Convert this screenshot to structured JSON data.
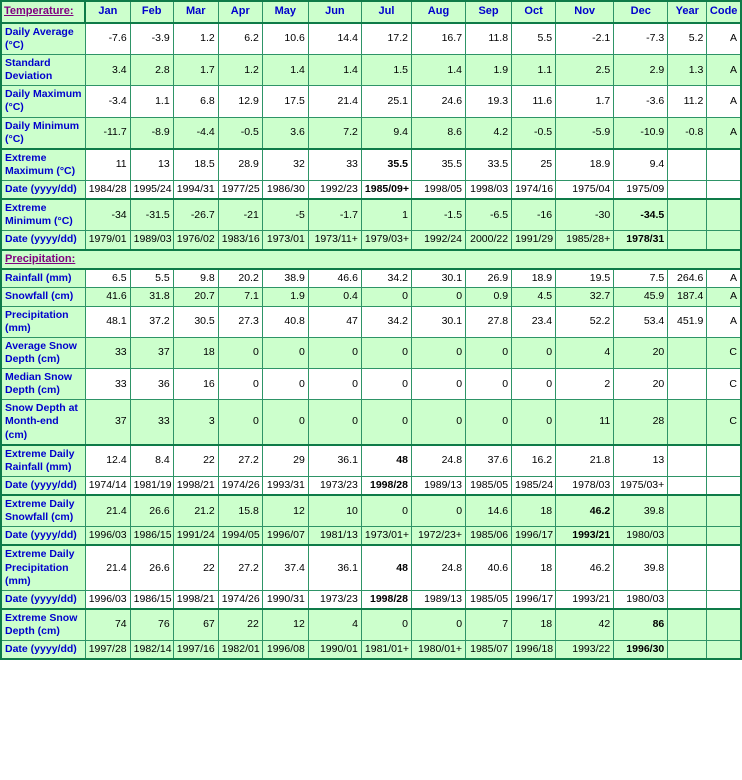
{
  "colors": {
    "cell_green": "#CCFFCC",
    "border_thin": "#2E9467",
    "border_thick": "#0E7B48",
    "label_blue": "#0000CC",
    "section_purple": "#800080",
    "text_black": "#000000"
  },
  "table": {
    "header": {
      "section_label": "Temperature:",
      "months": [
        "Jan",
        "Feb",
        "Mar",
        "Apr",
        "May",
        "Jun",
        "Jul",
        "Aug",
        "Sep",
        "Oct",
        "Nov",
        "Dec"
      ],
      "year_label": "Year",
      "code_label": "Code"
    },
    "rows": [
      {
        "kind": "data",
        "label": "Daily Average (°C)",
        "values": [
          "-7.6",
          "-3.9",
          "1.2",
          "6.2",
          "10.6",
          "14.4",
          "17.2",
          "16.7",
          "11.8",
          "5.5",
          "-2.1",
          "-7.3"
        ],
        "year": "5.2",
        "code": "A",
        "shade": false,
        "bold": [],
        "thick_top": false
      },
      {
        "kind": "data",
        "label": "Standard Deviation",
        "values": [
          "3.4",
          "2.8",
          "1.7",
          "1.2",
          "1.4",
          "1.4",
          "1.5",
          "1.4",
          "1.9",
          "1.1",
          "2.5",
          "2.9"
        ],
        "year": "1.3",
        "code": "A",
        "shade": true,
        "bold": [],
        "thick_top": false
      },
      {
        "kind": "data",
        "label": "Daily Maximum (°C)",
        "values": [
          "-3.4",
          "1.1",
          "6.8",
          "12.9",
          "17.5",
          "21.4",
          "25.1",
          "24.6",
          "19.3",
          "11.6",
          "1.7",
          "-3.6"
        ],
        "year": "11.2",
        "code": "A",
        "shade": false,
        "bold": [],
        "thick_top": false
      },
      {
        "kind": "data",
        "label": "Daily Minimum (°C)",
        "values": [
          "-11.7",
          "-8.9",
          "-4.4",
          "-0.5",
          "3.6",
          "7.2",
          "9.4",
          "8.6",
          "4.2",
          "-0.5",
          "-5.9",
          "-10.9"
        ],
        "year": "-0.8",
        "code": "A",
        "shade": true,
        "bold": [],
        "thick_top": false
      },
      {
        "kind": "data",
        "label": "Extreme Maximum (°C)",
        "values": [
          "11",
          "13",
          "18.5",
          "28.9",
          "32",
          "33",
          "35.5",
          "35.5",
          "33.5",
          "25",
          "18.9",
          "9.4"
        ],
        "year": "",
        "code": "",
        "shade": false,
        "bold": [
          6
        ],
        "thick_top": true
      },
      {
        "kind": "data",
        "label": "Date (yyyy/dd)",
        "values": [
          "1984/28",
          "1995/24",
          "1994/31",
          "1977/25",
          "1986/30",
          "1992/23",
          "1985/09+",
          "1998/05",
          "1998/03",
          "1974/16",
          "1975/04",
          "1975/09"
        ],
        "year": "",
        "code": "",
        "shade": false,
        "bold": [
          6
        ],
        "thick_top": false
      },
      {
        "kind": "data",
        "label": "Extreme Minimum (°C)",
        "values": [
          "-34",
          "-31.5",
          "-26.7",
          "-21",
          "-5",
          "-1.7",
          "1",
          "-1.5",
          "-6.5",
          "-16",
          "-30",
          "-34.5"
        ],
        "year": "",
        "code": "",
        "shade": true,
        "bold": [
          11
        ],
        "thick_top": true
      },
      {
        "kind": "data",
        "label": "Date (yyyy/dd)",
        "values": [
          "1979/01",
          "1989/03",
          "1976/02",
          "1983/16",
          "1973/01",
          "1973/11+",
          "1979/03+",
          "1992/24",
          "2000/22",
          "1991/29",
          "1985/28+",
          "1978/31"
        ],
        "year": "",
        "code": "",
        "shade": true,
        "bold": [
          11
        ],
        "thick_top": false
      },
      {
        "kind": "section",
        "label": "Precipitation:"
      },
      {
        "kind": "data",
        "label": "Rainfall (mm)",
        "values": [
          "6.5",
          "5.5",
          "9.8",
          "20.2",
          "38.9",
          "46.6",
          "34.2",
          "30.1",
          "26.9",
          "18.9",
          "19.5",
          "7.5"
        ],
        "year": "264.6",
        "code": "A",
        "shade": false,
        "bold": [],
        "thick_top": false
      },
      {
        "kind": "data",
        "label": "Snowfall (cm)",
        "values": [
          "41.6",
          "31.8",
          "20.7",
          "7.1",
          "1.9",
          "0.4",
          "0",
          "0",
          "0.9",
          "4.5",
          "32.7",
          "45.9"
        ],
        "year": "187.4",
        "code": "A",
        "shade": true,
        "bold": [],
        "thick_top": false
      },
      {
        "kind": "data",
        "label": "Precipitation (mm)",
        "values": [
          "48.1",
          "37.2",
          "30.5",
          "27.3",
          "40.8",
          "47",
          "34.2",
          "30.1",
          "27.8",
          "23.4",
          "52.2",
          "53.4"
        ],
        "year": "451.9",
        "code": "A",
        "shade": false,
        "bold": [],
        "thick_top": false
      },
      {
        "kind": "data",
        "label": "Average Snow Depth (cm)",
        "values": [
          "33",
          "37",
          "18",
          "0",
          "0",
          "0",
          "0",
          "0",
          "0",
          "0",
          "4",
          "20"
        ],
        "year": "",
        "code": "C",
        "shade": true,
        "bold": [],
        "thick_top": false
      },
      {
        "kind": "data",
        "label": "Median Snow Depth (cm)",
        "values": [
          "33",
          "36",
          "16",
          "0",
          "0",
          "0",
          "0",
          "0",
          "0",
          "0",
          "2",
          "20"
        ],
        "year": "",
        "code": "C",
        "shade": false,
        "bold": [],
        "thick_top": false
      },
      {
        "kind": "data",
        "label": "Snow Depth at Month-end (cm)",
        "values": [
          "37",
          "33",
          "3",
          "0",
          "0",
          "0",
          "0",
          "0",
          "0",
          "0",
          "11",
          "28"
        ],
        "year": "",
        "code": "C",
        "shade": true,
        "bold": [],
        "thick_top": false
      },
      {
        "kind": "data",
        "label": "Extreme Daily Rainfall (mm)",
        "values": [
          "12.4",
          "8.4",
          "22",
          "27.2",
          "29",
          "36.1",
          "48",
          "24.8",
          "37.6",
          "16.2",
          "21.8",
          "13"
        ],
        "year": "",
        "code": "",
        "shade": false,
        "bold": [
          6
        ],
        "thick_top": true
      },
      {
        "kind": "data",
        "label": "Date (yyyy/dd)",
        "values": [
          "1974/14",
          "1981/19",
          "1998/21",
          "1974/26",
          "1993/31",
          "1973/23",
          "1998/28",
          "1989/13",
          "1985/05",
          "1985/24",
          "1978/03",
          "1975/03+"
        ],
        "year": "",
        "code": "",
        "shade": false,
        "bold": [
          6
        ],
        "thick_top": false
      },
      {
        "kind": "data",
        "label": "Extreme Daily Snowfall (cm)",
        "values": [
          "21.4",
          "26.6",
          "21.2",
          "15.8",
          "12",
          "10",
          "0",
          "0",
          "14.6",
          "18",
          "46.2",
          "39.8"
        ],
        "year": "",
        "code": "",
        "shade": true,
        "bold": [
          10
        ],
        "thick_top": true
      },
      {
        "kind": "data",
        "label": "Date (yyyy/dd)",
        "values": [
          "1996/03",
          "1986/15",
          "1991/24",
          "1994/05",
          "1996/07",
          "1981/13",
          "1973/01+",
          "1972/23+",
          "1985/06",
          "1996/17",
          "1993/21",
          "1980/03"
        ],
        "year": "",
        "code": "",
        "shade": true,
        "bold": [
          10
        ],
        "thick_top": false
      },
      {
        "kind": "data",
        "label": "Extreme Daily Precipitation (mm)",
        "values": [
          "21.4",
          "26.6",
          "22",
          "27.2",
          "37.4",
          "36.1",
          "48",
          "24.8",
          "40.6",
          "18",
          "46.2",
          "39.8"
        ],
        "year": "",
        "code": "",
        "shade": false,
        "bold": [
          6
        ],
        "thick_top": true
      },
      {
        "kind": "data",
        "label": "Date (yyyy/dd)",
        "values": [
          "1996/03",
          "1986/15",
          "1998/21",
          "1974/26",
          "1990/31",
          "1973/23",
          "1998/28",
          "1989/13",
          "1985/05",
          "1996/17",
          "1993/21",
          "1980/03"
        ],
        "year": "",
        "code": "",
        "shade": false,
        "bold": [
          6
        ],
        "thick_top": false
      },
      {
        "kind": "data",
        "label": "Extreme Snow Depth (cm)",
        "values": [
          "74",
          "76",
          "67",
          "22",
          "12",
          "4",
          "0",
          "0",
          "7",
          "18",
          "42",
          "86"
        ],
        "year": "",
        "code": "",
        "shade": true,
        "bold": [
          11
        ],
        "thick_top": true
      },
      {
        "kind": "data",
        "label": "Date (yyyy/dd)",
        "values": [
          "1997/28",
          "1982/14",
          "1997/16",
          "1982/01",
          "1996/08",
          "1990/01",
          "1981/01+",
          "1980/01+",
          "1985/07",
          "1996/18",
          "1993/22",
          "1996/30"
        ],
        "year": "",
        "code": "",
        "shade": true,
        "bold": [
          11
        ],
        "thick_top": false
      }
    ]
  }
}
